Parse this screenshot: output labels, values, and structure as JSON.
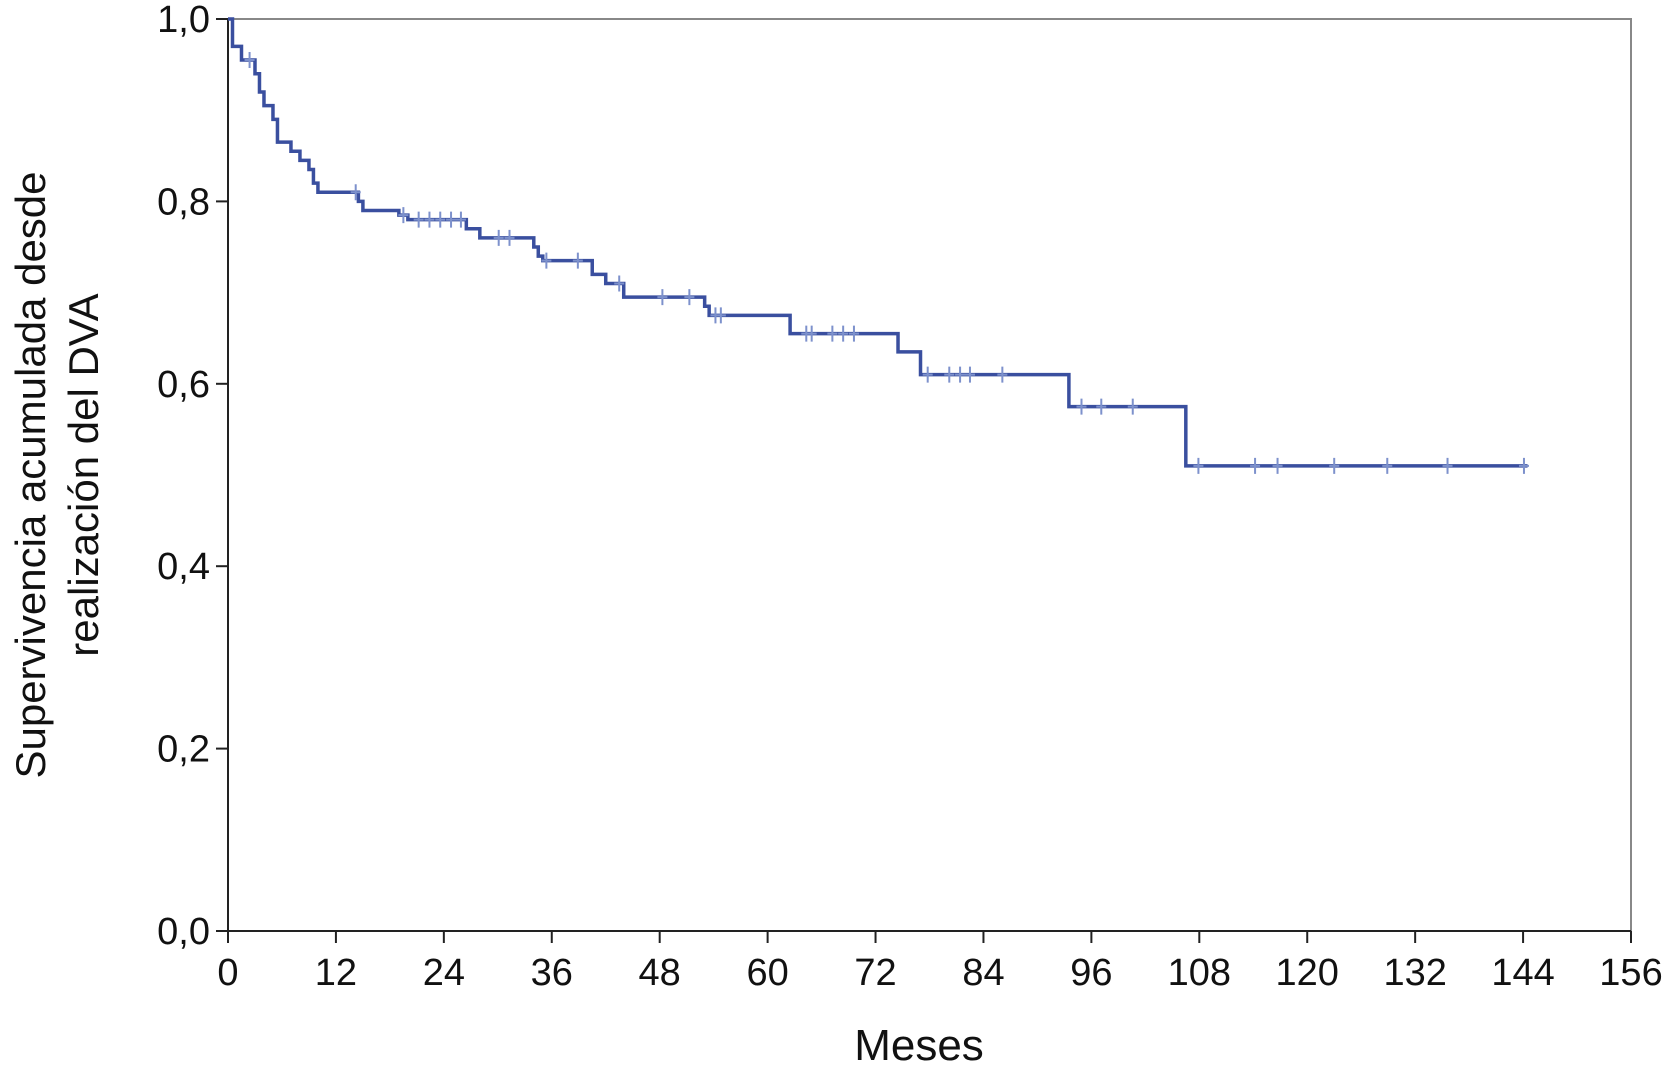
{
  "chart_data": {
    "type": "step",
    "x_label": "Meses",
    "y_label": [
      "Supervivencia acumulada desde",
      "realización del DVA"
    ],
    "xlim": [
      0,
      156
    ],
    "xticks": [
      0,
      12,
      24,
      36,
      48,
      60,
      72,
      84,
      96,
      108,
      120,
      132,
      144,
      156
    ],
    "ylim": [
      0,
      1
    ],
    "yticks": [
      {
        "value": 0,
        "label": "0,0"
      },
      {
        "value": 0.2,
        "label": "0,2"
      },
      {
        "value": 0.4,
        "label": "0,4"
      },
      {
        "value": 0.6,
        "label": "0,6"
      },
      {
        "value": 0.8,
        "label": "0,8"
      },
      {
        "value": 1,
        "label": "1,0"
      }
    ],
    "color": "#3a4f9f",
    "censor_color": "#7d91cc",
    "x": [
      0,
      0.5,
      1.5,
      3,
      3.5,
      4,
      5,
      5.5,
      7,
      8,
      9,
      9.5,
      10,
      14.5,
      15,
      19,
      20,
      26.5,
      28,
      34,
      34.5,
      35,
      40.5,
      42,
      44,
      53,
      53.5,
      62.5,
      74.5,
      77,
      93.5,
      106.5,
      144.5
    ],
    "values": [
      1,
      0.97,
      0.955,
      0.94,
      0.92,
      0.905,
      0.89,
      0.865,
      0.855,
      0.845,
      0.835,
      0.82,
      0.81,
      0.8,
      0.79,
      0.785,
      0.78,
      0.77,
      0.76,
      0.75,
      0.74,
      0.735,
      0.72,
      0.71,
      0.695,
      0.685,
      0.675,
      0.655,
      0.635,
      0.61,
      0.575,
      0.51,
      0.51
    ],
    "censored": {
      "x": [
        2.4,
        14.2,
        19.5,
        21.2,
        22.4,
        23.6,
        24.8,
        25.9,
        30.1,
        31.3,
        35.4,
        38.9,
        43.5,
        48.3,
        51.3,
        54.2,
        54.8,
        64.3,
        64.9,
        67.2,
        68.4,
        69.6,
        77.8,
        80.2,
        81.4,
        82.5,
        86.1,
        94.9,
        97.1,
        100.6,
        107.9,
        114.2,
        116.7,
        123,
        128.9,
        135.6,
        144.1
      ],
      "values": [
        0.955,
        0.81,
        0.785,
        0.78,
        0.78,
        0.78,
        0.78,
        0.78,
        0.76,
        0.76,
        0.735,
        0.735,
        0.71,
        0.695,
        0.695,
        0.675,
        0.675,
        0.655,
        0.655,
        0.655,
        0.655,
        0.655,
        0.61,
        0.61,
        0.61,
        0.61,
        0.61,
        0.575,
        0.575,
        0.575,
        0.51,
        0.51,
        0.51,
        0.51,
        0.51,
        0.51,
        0.51
      ]
    }
  }
}
